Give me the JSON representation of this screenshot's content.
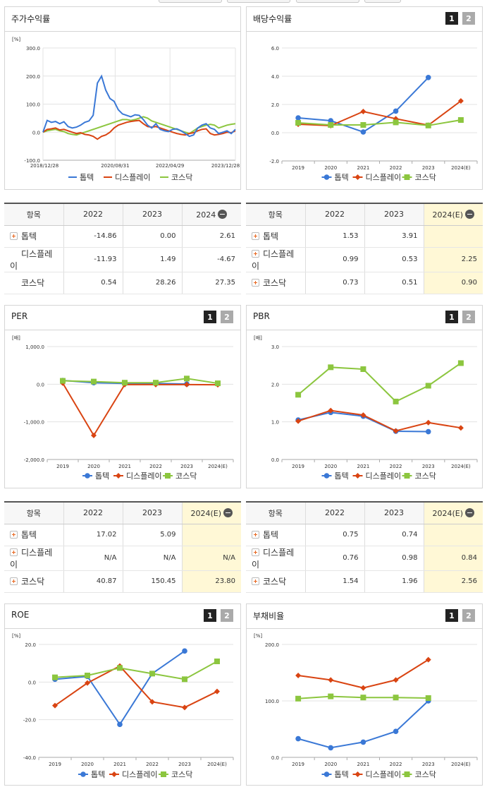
{
  "colors": {
    "tomtek": "#3a78d6",
    "display": "#d94412",
    "kosdaq": "#8cc63f"
  },
  "legend": [
    "톱텍",
    "디스플레이",
    "코스닥"
  ],
  "panels": {
    "stock": {
      "title": "주가수익률"
    },
    "dividend": {
      "title": "배당수익률",
      "btn1": "1",
      "btn2": "2"
    },
    "per": {
      "title": "PER",
      "btn1": "1",
      "btn2": "2"
    },
    "pbr": {
      "title": "PBR",
      "btn1": "1",
      "btn2": "2"
    },
    "roe": {
      "title": "ROE",
      "btn1": "1",
      "btn2": "2"
    },
    "debt": {
      "title": "부채비율",
      "btn1": "1",
      "btn2": "2"
    }
  },
  "tables": {
    "stock": {
      "headers": [
        "항목",
        "2022",
        "2023",
        "2024"
      ],
      "rows": [
        {
          "name": "톱텍",
          "v": [
            "-14.86",
            "0.00",
            "2.61"
          ]
        },
        {
          "name": "디스플레이",
          "v": [
            "-11.93",
            "1.49",
            "-4.67"
          ]
        },
        {
          "name": "코스닥",
          "v": [
            "0.54",
            "28.26",
            "27.35"
          ]
        }
      ]
    },
    "dividend": {
      "headers": [
        "항목",
        "2022",
        "2023",
        "2024(E)"
      ],
      "rows": [
        {
          "name": "톱텍",
          "v": [
            "1.53",
            "3.91",
            ""
          ]
        },
        {
          "name": "디스플레이",
          "v": [
            "0.99",
            "0.53",
            "2.25"
          ]
        },
        {
          "name": "코스닥",
          "v": [
            "0.73",
            "0.51",
            "0.90"
          ]
        }
      ]
    },
    "per": {
      "headers": [
        "항목",
        "2022",
        "2023",
        "2024(E)"
      ],
      "rows": [
        {
          "name": "톱텍",
          "v": [
            "17.02",
            "5.09",
            ""
          ]
        },
        {
          "name": "디스플레이",
          "v": [
            "N/A",
            "N/A",
            "N/A"
          ]
        },
        {
          "name": "코스닥",
          "v": [
            "40.87",
            "150.45",
            "23.80"
          ]
        }
      ]
    },
    "pbr": {
      "headers": [
        "항목",
        "2022",
        "2023",
        "2024(E)"
      ],
      "rows": [
        {
          "name": "톱텍",
          "v": [
            "0.75",
            "0.74",
            ""
          ]
        },
        {
          "name": "디스플레이",
          "v": [
            "0.76",
            "0.98",
            "0.84"
          ]
        },
        {
          "name": "코스닥",
          "v": [
            "1.54",
            "1.96",
            "2.56"
          ]
        }
      ]
    }
  },
  "chart_data": [
    {
      "id": "stock",
      "type": "line",
      "title": "주가수익률",
      "ylabel": "[%]",
      "x_labels": [
        "2018/12/28",
        "2020/08/31",
        "2022/04/29",
        "2023/12/28"
      ],
      "yticks": [
        "300.0",
        "200.0",
        "100.0",
        "0.0",
        "-100.0"
      ],
      "ylim": [
        -100,
        300
      ],
      "series": [
        {
          "name": "톱텍",
          "color": "#3a78d6",
          "values": [
            0,
            42,
            35,
            38,
            30,
            37,
            20,
            15,
            18,
            25,
            35,
            40,
            60,
            175,
            200,
            150,
            120,
            110,
            80,
            65,
            60,
            55,
            62,
            60,
            45,
            25,
            15,
            30,
            10,
            5,
            2,
            10,
            12,
            5,
            -5,
            -15,
            -10,
            15,
            25,
            30,
            15,
            10,
            -5,
            0,
            5,
            -5,
            10
          ]
        },
        {
          "name": "디스플레이",
          "color": "#d94412",
          "values": [
            0,
            10,
            12,
            15,
            8,
            10,
            5,
            0,
            -5,
            -2,
            -8,
            -10,
            -15,
            -25,
            -15,
            -10,
            0,
            15,
            25,
            30,
            35,
            38,
            40,
            42,
            30,
            20,
            18,
            20,
            15,
            10,
            5,
            0,
            -5,
            -8,
            -10,
            -5,
            -2,
            5,
            10,
            12,
            -5,
            -10,
            -8,
            -5,
            0,
            -2,
            5
          ]
        },
        {
          "name": "코스닥",
          "color": "#8cc63f",
          "values": [
            0,
            5,
            8,
            10,
            5,
            2,
            -5,
            -8,
            -10,
            -5,
            0,
            5,
            10,
            15,
            20,
            25,
            30,
            35,
            40,
            45,
            45,
            42,
            45,
            50,
            55,
            50,
            40,
            35,
            30,
            25,
            20,
            15,
            10,
            5,
            0,
            -5,
            5,
            15,
            20,
            25,
            28,
            25,
            15,
            20,
            25,
            28,
            30
          ]
        }
      ]
    },
    {
      "id": "dividend",
      "type": "line",
      "title": "배당수익률",
      "categories": [
        "2019",
        "2020",
        "2021",
        "2022",
        "2023",
        "2024(E)"
      ],
      "yticks": [
        "6.0",
        "4.0",
        "2.0",
        "0.0",
        "-2.0"
      ],
      "ylim": [
        -2,
        6
      ],
      "series": [
        {
          "name": "톱텍",
          "color": "#3a78d6",
          "values": [
            1.05,
            0.85,
            0.05,
            1.53,
            3.91,
            null
          ]
        },
        {
          "name": "디스플레이",
          "color": "#d94412",
          "values": [
            0.6,
            0.5,
            1.5,
            0.99,
            0.53,
            2.25
          ]
        },
        {
          "name": "코스닥",
          "color": "#8cc63f",
          "values": [
            0.7,
            0.55,
            0.55,
            0.73,
            0.51,
            0.9
          ]
        }
      ]
    },
    {
      "id": "per",
      "type": "line",
      "title": "PER",
      "ylabel": "[배]",
      "categories": [
        "2019",
        "2020",
        "2021",
        "2022",
        "2023",
        "2024(E)"
      ],
      "yticks": [
        "1,000.0",
        "0.0",
        "-1,000.0",
        "-2,000.0"
      ],
      "ylim": [
        -2000,
        1000
      ],
      "series": [
        {
          "name": "톱텍",
          "color": "#3a78d6",
          "values": [
            100,
            40,
            20,
            17.02,
            5.09,
            null
          ]
        },
        {
          "name": "디스플레이",
          "color": "#d94412",
          "values": [
            30,
            -1360,
            -10,
            -10,
            -10,
            -15
          ]
        },
        {
          "name": "코스닥",
          "color": "#8cc63f",
          "values": [
            90,
            70,
            40,
            40.87,
            150.45,
            23.8
          ]
        }
      ]
    },
    {
      "id": "pbr",
      "type": "line",
      "title": "PBR",
      "ylabel": "[배]",
      "categories": [
        "2019",
        "2020",
        "2021",
        "2022",
        "2023",
        "2024(E)"
      ],
      "yticks": [
        "3.0",
        "2.0",
        "1.0",
        "0.0"
      ],
      "ylim": [
        0,
        3
      ],
      "series": [
        {
          "name": "톱텍",
          "color": "#3a78d6",
          "values": [
            1.05,
            1.25,
            1.15,
            0.75,
            0.74,
            null
          ]
        },
        {
          "name": "디스플레이",
          "color": "#d94412",
          "values": [
            1.02,
            1.3,
            1.18,
            0.76,
            0.98,
            0.84
          ]
        },
        {
          "name": "코스닥",
          "color": "#8cc63f",
          "values": [
            1.72,
            2.45,
            2.4,
            1.54,
            1.96,
            2.56
          ]
        }
      ]
    },
    {
      "id": "roe",
      "type": "line",
      "title": "ROE",
      "ylabel": "[%]",
      "categories": [
        "2019",
        "2020",
        "2021",
        "2022",
        "2023",
        "2024(E)"
      ],
      "yticks": [
        "20.0",
        "0.0",
        "-20.0",
        "-40.0"
      ],
      "ylim": [
        -40,
        20
      ],
      "series": [
        {
          "name": "톱텍",
          "color": "#3a78d6",
          "values": [
            1.5,
            3.0,
            -22.5,
            4.5,
            16.5,
            null
          ]
        },
        {
          "name": "디스플레이",
          "color": "#d94412",
          "values": [
            -12.5,
            -0.5,
            8.5,
            -10.5,
            -13.5,
            -5.0
          ]
        },
        {
          "name": "코스닥",
          "color": "#8cc63f",
          "values": [
            2.5,
            3.5,
            7.5,
            4.5,
            1.5,
            11.0
          ]
        }
      ]
    },
    {
      "id": "debt",
      "type": "line",
      "title": "부채비율",
      "ylabel": "[%]",
      "categories": [
        "2019",
        "2020",
        "2021",
        "2022",
        "2023",
        "2024(E)"
      ],
      "yticks": [
        "200.0",
        "100.0",
        "0.0"
      ],
      "ylim": [
        0,
        200
      ],
      "series": [
        {
          "name": "톱텍",
          "color": "#3a78d6",
          "values": [
            33,
            17,
            27,
            46,
            100,
            null
          ]
        },
        {
          "name": "디스플레이",
          "color": "#d94412",
          "values": [
            145,
            137,
            123,
            137,
            173,
            null
          ]
        },
        {
          "name": "코스닥",
          "color": "#8cc63f",
          "values": [
            104,
            108,
            106,
            106,
            105,
            null
          ]
        }
      ]
    }
  ]
}
